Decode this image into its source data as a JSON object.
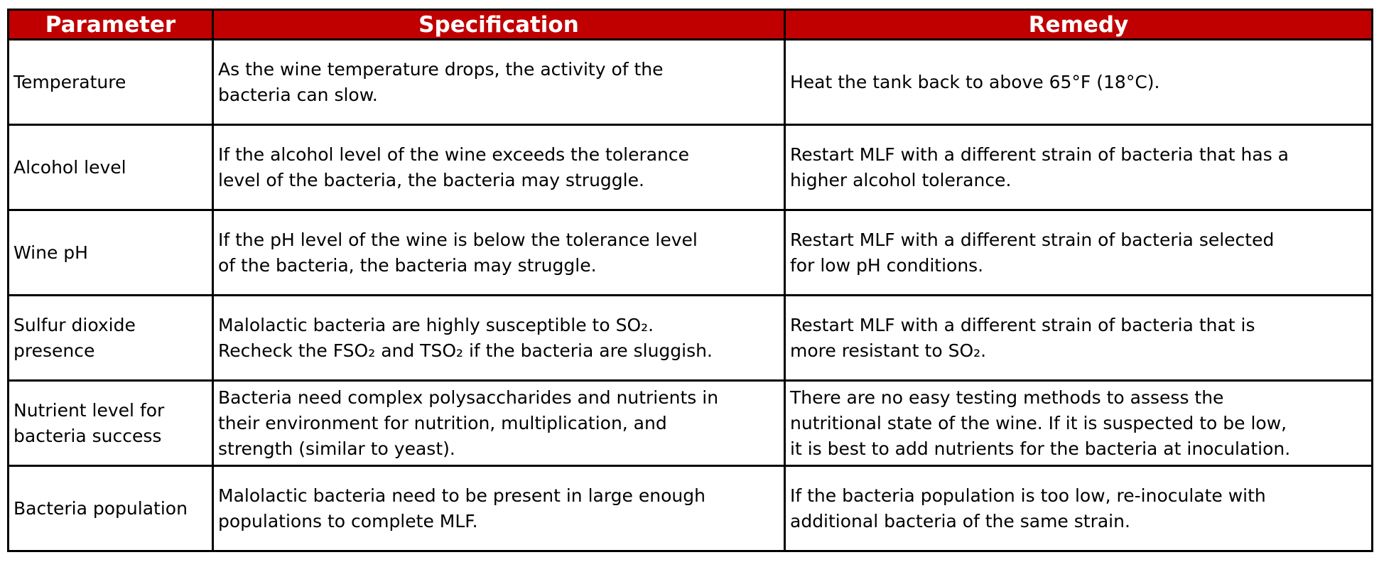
{
  "colors": {
    "header_bg": "#c00000",
    "header_text": "#ffffff",
    "border": "#000000"
  },
  "headers": [
    "Parameter",
    "Specification",
    "Remedy"
  ],
  "rows": [
    {
      "parameter": [
        "Temperature"
      ],
      "specification": [
        "As the wine temperature drops, the activity of the",
        "bacteria can slow."
      ],
      "remedy": [
        "Heat the tank back to above 65°F (18°C)."
      ]
    },
    {
      "parameter": [
        "Alcohol level"
      ],
      "specification": [
        "If the alcohol level of the wine exceeds the tolerance",
        "level of the bacteria, the bacteria may struggle."
      ],
      "remedy": [
        "Restart MLF with a different strain of bacteria that has a",
        "higher alcohol tolerance."
      ]
    },
    {
      "parameter": [
        "Wine pH"
      ],
      "specification": [
        "If the pH level of the wine is below the tolerance level",
        "of the bacteria, the bacteria may struggle."
      ],
      "remedy": [
        "Restart MLF with a different strain of bacteria selected",
        "for low pH conditions."
      ]
    },
    {
      "parameter": [
        "Sulfur dioxide",
        "presence"
      ],
      "specification": [
        "Malolactic bacteria are highly susceptible to SO₂.",
        "Recheck the FSO₂ and TSO₂ if the bacteria are sluggish."
      ],
      "remedy": [
        "Restart MLF with a different strain of bacteria that is",
        "more resistant to SO₂."
      ]
    },
    {
      "parameter": [
        "Nutrient level for",
        "bacteria success"
      ],
      "specification": [
        "Bacteria need complex polysaccharides and nutrients in",
        "their environment for nutrition, multiplication, and",
        "strength (similar to yeast)."
      ],
      "remedy": [
        "There are no easy testing methods to assess the",
        "nutritional state of the wine. If it is suspected to be low,",
        "it is best to add nutrients for the bacteria at inoculation."
      ]
    },
    {
      "parameter": [
        "Bacteria population"
      ],
      "specification": [
        "Malolactic bacteria need to be present in large enough",
        "populations to complete MLF."
      ],
      "remedy": [
        "If the bacteria population is too low, re-inoculate with",
        "additional bacteria of the same strain."
      ]
    }
  ]
}
